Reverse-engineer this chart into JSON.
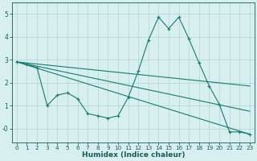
{
  "xlabel": "Humidex (Indice chaleur)",
  "bg_color": "#d7efef",
  "line_color": "#1a7a6e",
  "grid_color": "#b8d8d8",
  "xlim": [
    -0.5,
    23.5
  ],
  "ylim": [
    -0.6,
    5.5
  ],
  "yticks": [
    0,
    1,
    2,
    3,
    4,
    5
  ],
  "ytick_labels": [
    "-0",
    "1",
    "2",
    "3",
    "4",
    "5"
  ],
  "xticks": [
    0,
    1,
    2,
    3,
    4,
    5,
    6,
    7,
    8,
    9,
    10,
    11,
    12,
    13,
    14,
    15,
    16,
    17,
    18,
    19,
    20,
    21,
    22,
    23
  ],
  "line1_x": [
    0,
    1,
    2,
    3,
    4,
    5,
    6,
    7,
    8,
    9,
    10,
    11,
    12,
    13,
    14,
    15,
    16,
    17,
    18,
    19,
    20,
    21,
    22,
    23
  ],
  "line1_y": [
    2.9,
    2.8,
    2.65,
    1.0,
    1.45,
    1.55,
    1.3,
    0.65,
    0.55,
    0.45,
    0.55,
    1.35,
    2.5,
    3.85,
    4.85,
    4.35,
    4.85,
    3.9,
    2.85,
    1.85,
    1.05,
    -0.15,
    -0.15,
    -0.25
  ],
  "line2_x": [
    0,
    23
  ],
  "line2_y": [
    2.9,
    1.85
  ],
  "line3_x": [
    0,
    23
  ],
  "line3_y": [
    2.9,
    -0.25
  ],
  "line4_x": [
    0,
    23
  ],
  "line4_y": [
    2.9,
    0.75
  ]
}
